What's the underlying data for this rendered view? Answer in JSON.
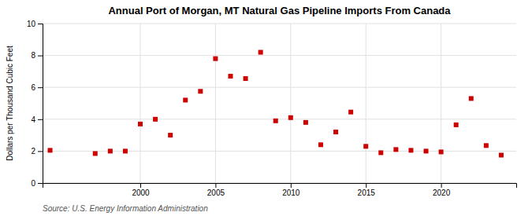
{
  "chart_data": {
    "type": "scatter",
    "title": "Annual Port of Morgan, MT Natural Gas Pipeline Imports From Canada",
    "ylabel": "Dollars per Thousand Cubic Feet",
    "annotations": [
      "Source: U.S. Energy Information Administration"
    ],
    "x": [
      1994,
      1997,
      1998,
      1999,
      2000,
      2001,
      2002,
      2003,
      2004,
      2005,
      2006,
      2007,
      2008,
      2009,
      2010,
      2011,
      2012,
      2013,
      2014,
      2015,
      2016,
      2017,
      2018,
      2019,
      2020,
      2021,
      2022,
      2023,
      2024
    ],
    "values": [
      2.05,
      1.85,
      2.0,
      2.0,
      3.7,
      4.0,
      3.0,
      5.2,
      5.75,
      7.8,
      6.7,
      6.55,
      8.2,
      3.9,
      4.1,
      3.8,
      2.4,
      3.2,
      4.45,
      2.3,
      1.9,
      2.1,
      2.05,
      2.0,
      1.95,
      3.65,
      5.3,
      2.35,
      1.75
    ],
    "color": "#cc0000",
    "marker": "square",
    "xlim": [
      1993.5,
      2025
    ],
    "ylim": [
      0,
      10
    ],
    "xticks": [
      2000,
      2005,
      2010,
      2015,
      2020
    ],
    "yticks": [
      0,
      2,
      4,
      6,
      8,
      10
    ],
    "grid": true
  }
}
